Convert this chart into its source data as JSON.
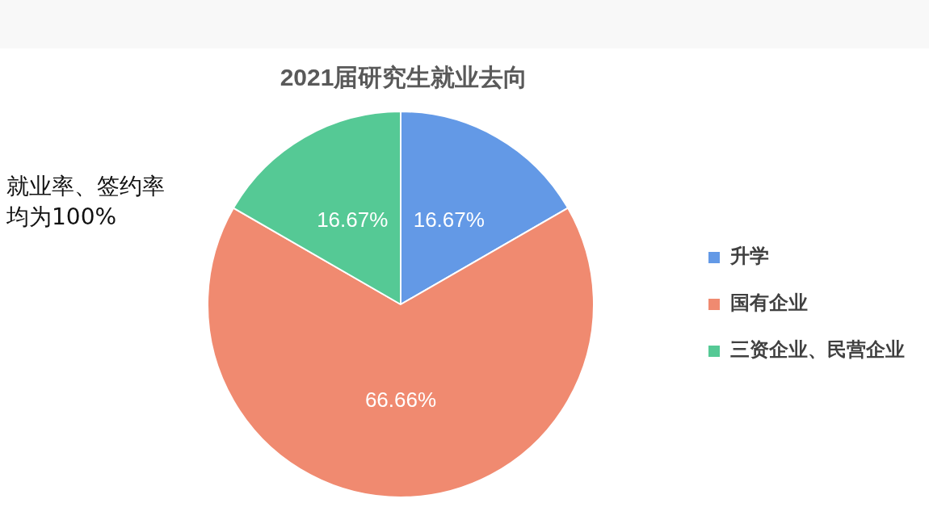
{
  "chart_data": {
    "type": "pie",
    "title": "2021届研究生就业去向",
    "categories": [
      "升学",
      "国有企业",
      "三资企业、民营企业"
    ],
    "values": [
      16.67,
      66.66,
      16.67
    ],
    "colors": [
      "#6399e6",
      "#f08a70",
      "#55c995"
    ],
    "value_labels": [
      "16.67%",
      "66.66%",
      "16.67%"
    ],
    "legend": "right",
    "annotations": [
      "就业率、签约率均为100%"
    ]
  }
}
